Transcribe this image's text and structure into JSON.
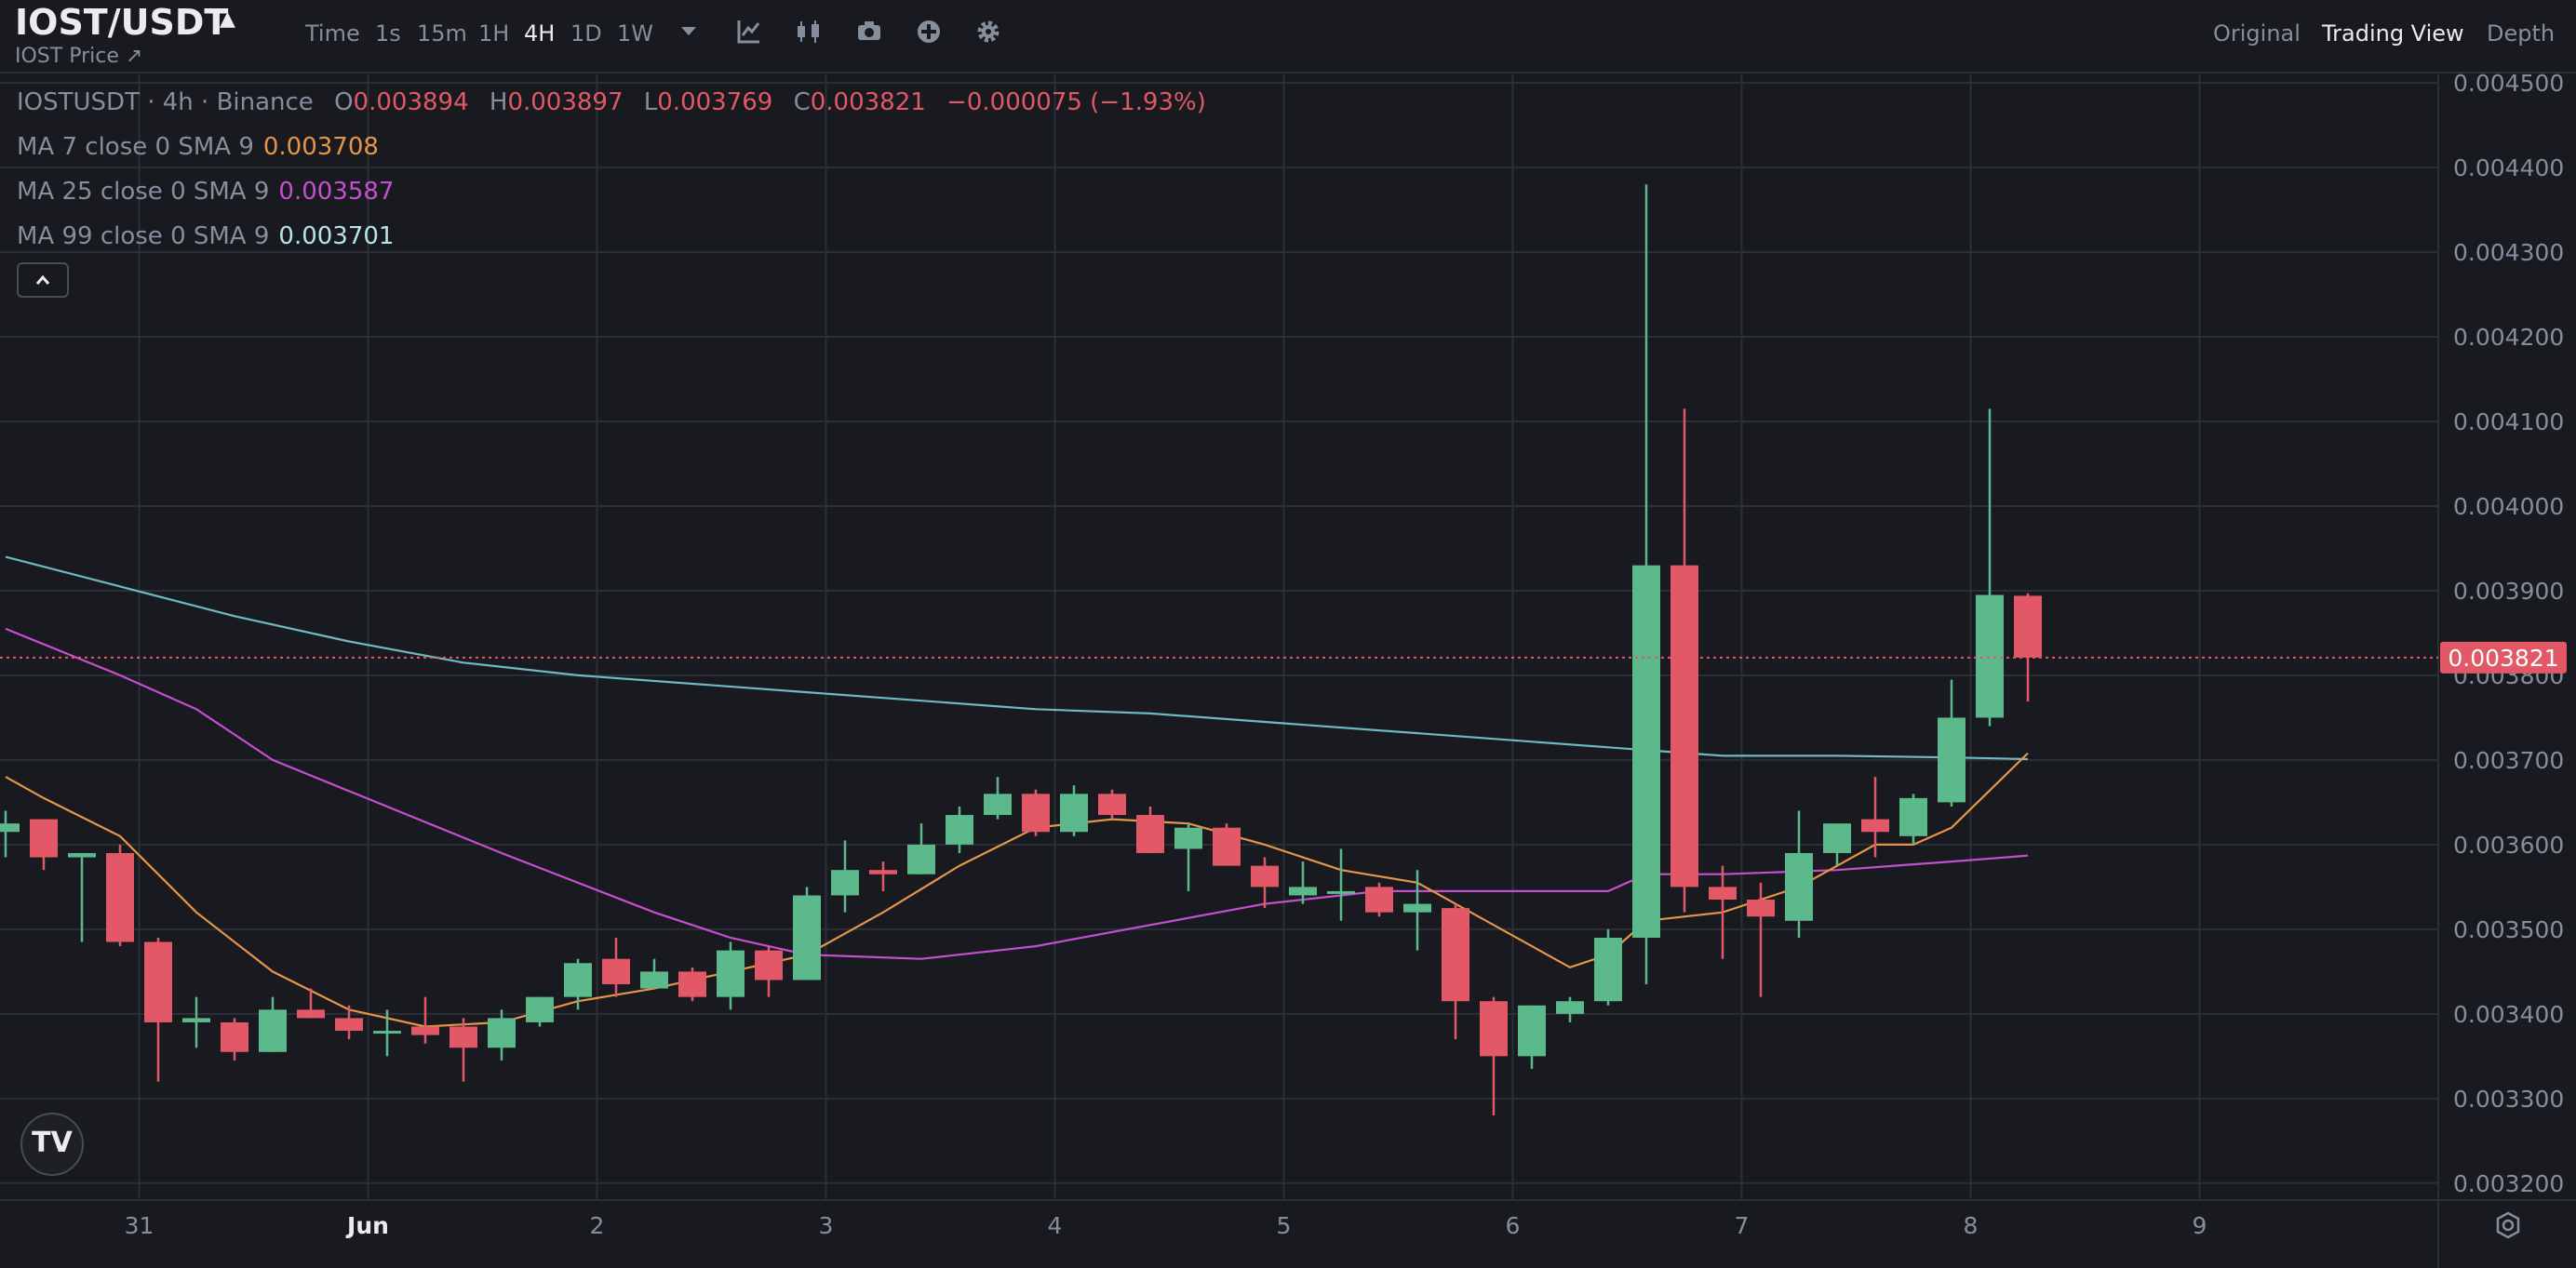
{
  "header": {
    "pair": "IOST/USDT",
    "subtitle": "IOST Price ↗",
    "timeframes": [
      "Time",
      "1s",
      "15m",
      "1H",
      "4H",
      "1D",
      "1W"
    ],
    "active_timeframe": "4H",
    "views": [
      "Original",
      "Trading View",
      "Depth"
    ],
    "active_view": "Trading View"
  },
  "legend": {
    "symbol": "IOSTUSDT · 4h · Binance",
    "open_label": "O",
    "open": "0.003894",
    "high_label": "H",
    "high": "0.003897",
    "low_label": "L",
    "low": "0.003769",
    "close_label": "C",
    "close": "0.003821",
    "change": "−0.000075 (−1.93%)",
    "ma7_label": "MA 7 close 0 SMA 9",
    "ma7_value": "0.003708",
    "ma25_label": "MA 25 close 0 SMA 9",
    "ma25_value": "0.003587",
    "ma99_label": "MA 99 close 0 SMA 9",
    "ma99_value": "0.003701"
  },
  "logo_text": "TV",
  "colors": {
    "up": "#5bb98b",
    "down": "#e25866",
    "ma7": "#e6944a",
    "ma25": "#c64fd0",
    "ma99": "#6fb9c0",
    "axis_text": "#848e9c",
    "grid": "#2b2f36",
    "background": "#181a20"
  },
  "chart_data": {
    "type": "candlestick",
    "title": "IOSTUSDT · 4h · Binance",
    "ylim": [
      0.00318,
      0.00451
    ],
    "y_ticks": [
      "0.003200",
      "0.003300",
      "0.003400",
      "0.003500",
      "0.003600",
      "0.003700",
      "0.003800",
      "0.003900",
      "0.004000",
      "0.004100",
      "0.004200",
      "0.004300",
      "0.004400",
      "0.004500"
    ],
    "x_ticks": [
      {
        "label": "31",
        "index": 3.5
      },
      {
        "label": "Jun",
        "index": 9.5
      },
      {
        "label": "2",
        "index": 15.5
      },
      {
        "label": "3",
        "index": 21.5
      },
      {
        "label": "4",
        "index": 27.5
      },
      {
        "label": "5",
        "index": 33.5
      },
      {
        "label": "6",
        "index": 39.5
      },
      {
        "label": "7",
        "index": 45.5
      },
      {
        "label": "8",
        "index": 51.5
      },
      {
        "label": "9",
        "index": 57.5
      }
    ],
    "candles": [
      {
        "o": 0.003615,
        "h": 0.00364,
        "l": 0.003585,
        "c": 0.003625
      },
      {
        "o": 0.00363,
        "h": 0.00363,
        "l": 0.00357,
        "c": 0.003585
      },
      {
        "o": 0.003585,
        "h": 0.00359,
        "l": 0.003485,
        "c": 0.00359
      },
      {
        "o": 0.00359,
        "h": 0.0036,
        "l": 0.00348,
        "c": 0.003485
      },
      {
        "o": 0.003485,
        "h": 0.00349,
        "l": 0.00332,
        "c": 0.00339
      },
      {
        "o": 0.00339,
        "h": 0.00342,
        "l": 0.00336,
        "c": 0.003395
      },
      {
        "o": 0.00339,
        "h": 0.003395,
        "l": 0.003345,
        "c": 0.003355
      },
      {
        "o": 0.003355,
        "h": 0.00342,
        "l": 0.003355,
        "c": 0.003405
      },
      {
        "o": 0.003405,
        "h": 0.00343,
        "l": 0.003395,
        "c": 0.003395
      },
      {
        "o": 0.003395,
        "h": 0.00341,
        "l": 0.00337,
        "c": 0.00338
      },
      {
        "o": 0.00338,
        "h": 0.003405,
        "l": 0.00335,
        "c": 0.00338
      },
      {
        "o": 0.003385,
        "h": 0.00342,
        "l": 0.003365,
        "c": 0.003375
      },
      {
        "o": 0.003385,
        "h": 0.003395,
        "l": 0.00332,
        "c": 0.00336
      },
      {
        "o": 0.00336,
        "h": 0.003405,
        "l": 0.003345,
        "c": 0.003395
      },
      {
        "o": 0.00339,
        "h": 0.00342,
        "l": 0.003385,
        "c": 0.00342
      },
      {
        "o": 0.00342,
        "h": 0.003465,
        "l": 0.003405,
        "c": 0.00346
      },
      {
        "o": 0.003465,
        "h": 0.00349,
        "l": 0.00342,
        "c": 0.003435
      },
      {
        "o": 0.00343,
        "h": 0.003465,
        "l": 0.00343,
        "c": 0.00345
      },
      {
        "o": 0.00345,
        "h": 0.003455,
        "l": 0.003415,
        "c": 0.00342
      },
      {
        "o": 0.00342,
        "h": 0.003485,
        "l": 0.003405,
        "c": 0.003475
      },
      {
        "o": 0.003475,
        "h": 0.00348,
        "l": 0.00342,
        "c": 0.00344
      },
      {
        "o": 0.00344,
        "h": 0.00355,
        "l": 0.00344,
        "c": 0.00354
      },
      {
        "o": 0.00354,
        "h": 0.003605,
        "l": 0.00352,
        "c": 0.00357
      },
      {
        "o": 0.00357,
        "h": 0.00358,
        "l": 0.003545,
        "c": 0.003565
      },
      {
        "o": 0.003565,
        "h": 0.003625,
        "l": 0.003565,
        "c": 0.0036
      },
      {
        "o": 0.0036,
        "h": 0.003645,
        "l": 0.00359,
        "c": 0.003635
      },
      {
        "o": 0.003635,
        "h": 0.00368,
        "l": 0.00363,
        "c": 0.00366
      },
      {
        "o": 0.00366,
        "h": 0.003665,
        "l": 0.00361,
        "c": 0.003615
      },
      {
        "o": 0.003615,
        "h": 0.00367,
        "l": 0.00361,
        "c": 0.00366
      },
      {
        "o": 0.00366,
        "h": 0.003665,
        "l": 0.00363,
        "c": 0.003635
      },
      {
        "o": 0.003635,
        "h": 0.003645,
        "l": 0.00359,
        "c": 0.00359
      },
      {
        "o": 0.003595,
        "h": 0.003625,
        "l": 0.003545,
        "c": 0.00362
      },
      {
        "o": 0.00362,
        "h": 0.003625,
        "l": 0.003575,
        "c": 0.003575
      },
      {
        "o": 0.003575,
        "h": 0.003585,
        "l": 0.003525,
        "c": 0.00355
      },
      {
        "o": 0.00354,
        "h": 0.00358,
        "l": 0.00353,
        "c": 0.00355
      },
      {
        "o": 0.003545,
        "h": 0.003595,
        "l": 0.00351,
        "c": 0.003545
      },
      {
        "o": 0.00355,
        "h": 0.003555,
        "l": 0.003515,
        "c": 0.00352
      },
      {
        "o": 0.00352,
        "h": 0.00357,
        "l": 0.003475,
        "c": 0.00353
      },
      {
        "o": 0.003525,
        "h": 0.00353,
        "l": 0.00337,
        "c": 0.003415
      },
      {
        "o": 0.003415,
        "h": 0.00342,
        "l": 0.00328,
        "c": 0.00335
      },
      {
        "o": 0.00335,
        "h": 0.00341,
        "l": 0.003335,
        "c": 0.00341
      },
      {
        "o": 0.0034,
        "h": 0.00342,
        "l": 0.00339,
        "c": 0.003415
      },
      {
        "o": 0.003415,
        "h": 0.0035,
        "l": 0.00341,
        "c": 0.00349
      },
      {
        "o": 0.00349,
        "h": 0.00438,
        "l": 0.003435,
        "c": 0.00393
      },
      {
        "o": 0.00393,
        "h": 0.004115,
        "l": 0.00352,
        "c": 0.00355
      },
      {
        "o": 0.00355,
        "h": 0.003575,
        "l": 0.003465,
        "c": 0.003535
      },
      {
        "o": 0.003535,
        "h": 0.003555,
        "l": 0.00342,
        "c": 0.003515
      },
      {
        "o": 0.00351,
        "h": 0.00364,
        "l": 0.00349,
        "c": 0.00359
      },
      {
        "o": 0.00359,
        "h": 0.003625,
        "l": 0.003575,
        "c": 0.003625
      },
      {
        "o": 0.00363,
        "h": 0.00368,
        "l": 0.003585,
        "c": 0.003615
      },
      {
        "o": 0.00361,
        "h": 0.00366,
        "l": 0.0036,
        "c": 0.003655
      },
      {
        "o": 0.00365,
        "h": 0.003795,
        "l": 0.003645,
        "c": 0.00375
      },
      {
        "o": 0.00375,
        "h": 0.004115,
        "l": 0.00374,
        "c": 0.003895
      },
      {
        "o": 0.003894,
        "h": 0.003897,
        "l": 0.003769,
        "c": 0.003821
      }
    ],
    "ma7": [
      [
        0,
        0.00368
      ],
      [
        1,
        0.003655
      ],
      [
        3,
        0.00361
      ],
      [
        5,
        0.00352
      ],
      [
        7,
        0.00345
      ],
      [
        9,
        0.003405
      ],
      [
        11,
        0.003385
      ],
      [
        13,
        0.00339
      ],
      [
        15,
        0.003415
      ],
      [
        17,
        0.00343
      ],
      [
        19,
        0.00345
      ],
      [
        21,
        0.00347
      ],
      [
        23,
        0.00352
      ],
      [
        25,
        0.003575
      ],
      [
        27,
        0.00362
      ],
      [
        29,
        0.00363
      ],
      [
        31,
        0.003625
      ],
      [
        33,
        0.0036
      ],
      [
        35,
        0.00357
      ],
      [
        37,
        0.003555
      ],
      [
        39,
        0.003505
      ],
      [
        41,
        0.003455
      ],
      [
        42,
        0.00347
      ],
      [
        43,
        0.00351
      ],
      [
        45,
        0.00352
      ],
      [
        47,
        0.00355
      ],
      [
        49,
        0.0036
      ],
      [
        50,
        0.0036
      ],
      [
        51,
        0.00362
      ],
      [
        53,
        0.003708
      ]
    ],
    "ma25": [
      [
        0,
        0.003855
      ],
      [
        3,
        0.0038
      ],
      [
        5,
        0.00376
      ],
      [
        7,
        0.0037
      ],
      [
        10,
        0.003645
      ],
      [
        13,
        0.00359
      ],
      [
        17,
        0.00352
      ],
      [
        19,
        0.00349
      ],
      [
        21,
        0.00347
      ],
      [
        24,
        0.003465
      ],
      [
        27,
        0.00348
      ],
      [
        30,
        0.003505
      ],
      [
        33,
        0.00353
      ],
      [
        36,
        0.003545
      ],
      [
        39,
        0.003545
      ],
      [
        42,
        0.003545
      ],
      [
        43,
        0.003565
      ],
      [
        45,
        0.003565
      ],
      [
        48,
        0.00357
      ],
      [
        51,
        0.00358
      ],
      [
        53,
        0.003587
      ]
    ],
    "ma99": [
      [
        0,
        0.00394
      ],
      [
        3,
        0.003905
      ],
      [
        6,
        0.00387
      ],
      [
        9,
        0.00384
      ],
      [
        12,
        0.003815
      ],
      [
        15,
        0.0038
      ],
      [
        18,
        0.00379
      ],
      [
        21,
        0.00378
      ],
      [
        24,
        0.00377
      ],
      [
        27,
        0.00376
      ],
      [
        30,
        0.003755
      ],
      [
        33,
        0.003745
      ],
      [
        36,
        0.003735
      ],
      [
        39,
        0.003725
      ],
      [
        42,
        0.003715
      ],
      [
        45,
        0.003705
      ],
      [
        48,
        0.003705
      ],
      [
        51,
        0.003703
      ],
      [
        53,
        0.003701
      ]
    ],
    "last_price": 0.003821,
    "last_price_label": "0.003821"
  }
}
